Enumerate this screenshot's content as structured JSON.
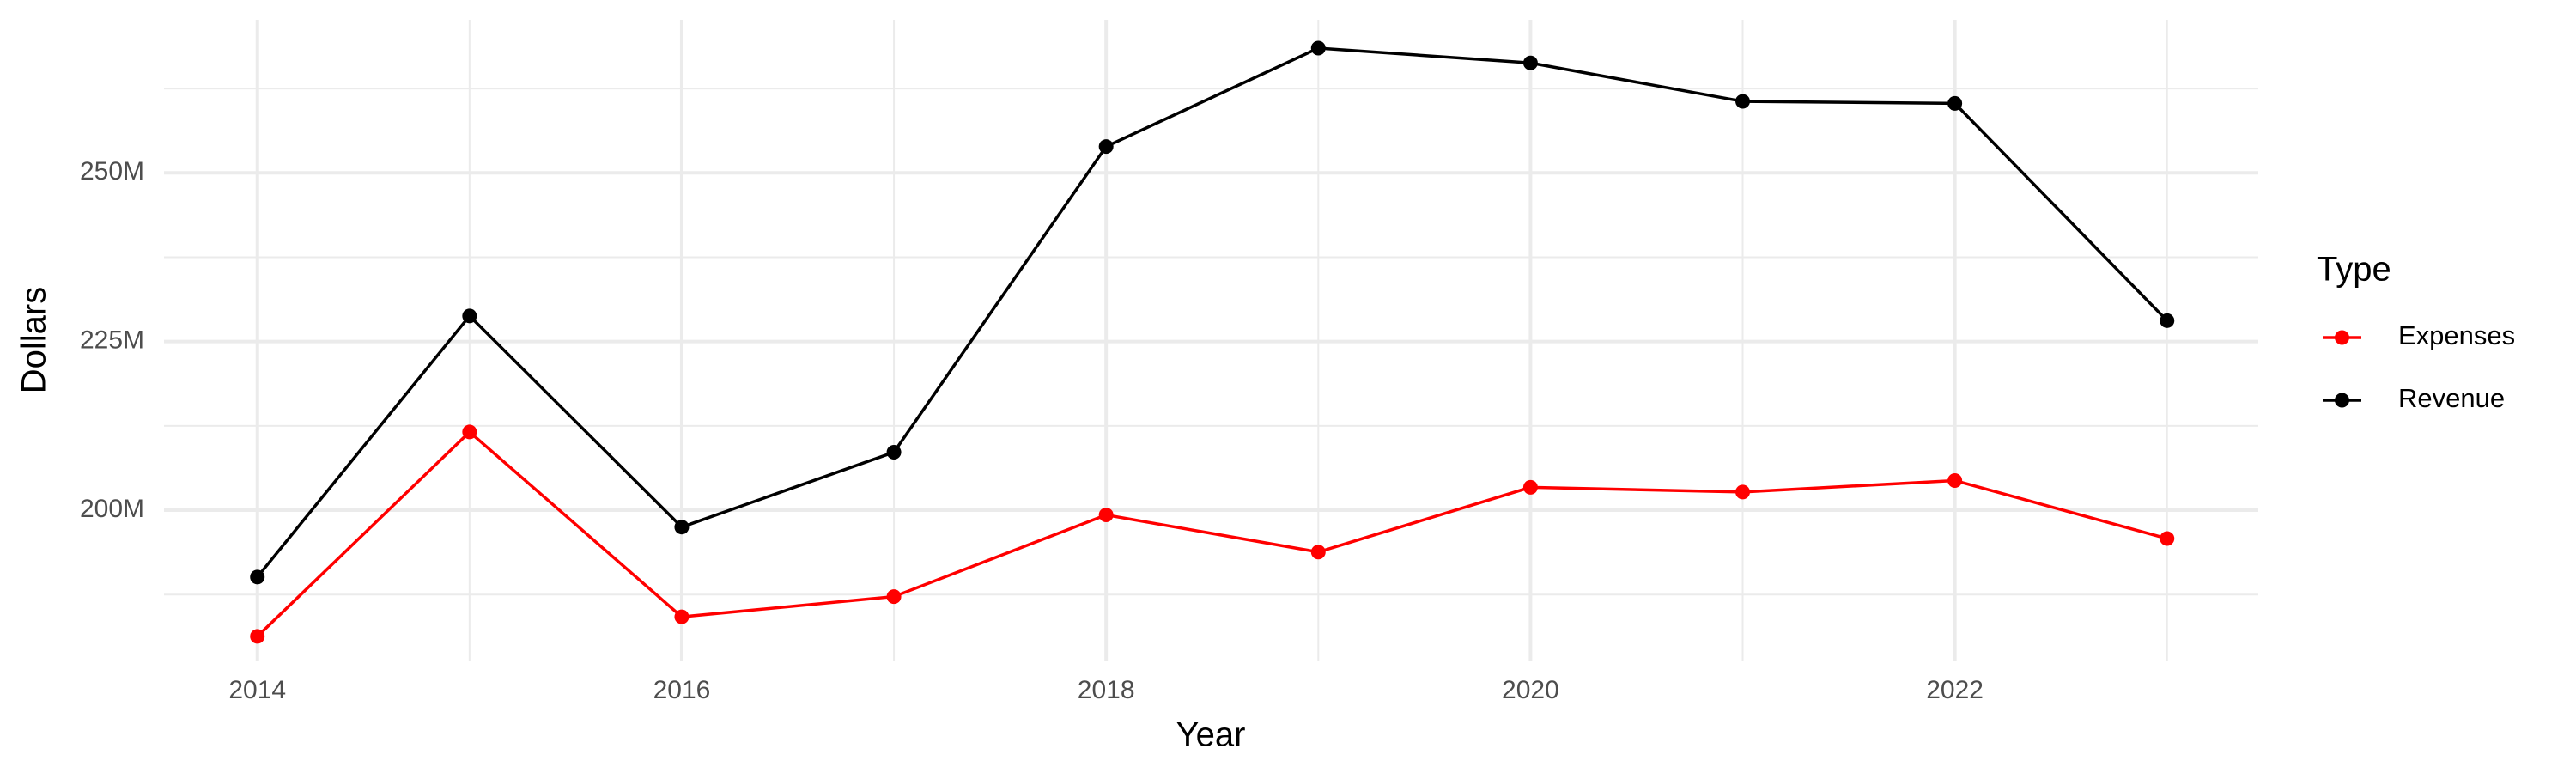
{
  "chart_data": {
    "type": "line",
    "x_label": "Year",
    "y_label": "Dollars",
    "legend_title": "Type",
    "x": [
      2014,
      2015,
      2016,
      2017,
      2018,
      2019,
      2020,
      2021,
      2022,
      2023
    ],
    "series": [
      {
        "name": "Expenses",
        "color": "#ff0000",
        "values": [
          181300000,
          211600000,
          184200000,
          187200000,
          199300000,
          193800000,
          203400000,
          202700000,
          204400000,
          195800000
        ]
      },
      {
        "name": "Revenue",
        "color": "#000000",
        "values": [
          190100000,
          228800000,
          197500000,
          208600000,
          253900000,
          268500000,
          266300000,
          260600000,
          260300000,
          228100000
        ]
      }
    ],
    "xlim": [
      2013.56,
      2023.43
    ],
    "xticks": [
      2014,
      2016,
      2018,
      2020,
      2022
    ],
    "ylim": [
      177600000,
      272700000
    ],
    "yticks": [
      {
        "value": 200000000,
        "label": "200M"
      },
      {
        "value": 225000000,
        "label": "225M"
      },
      {
        "value": 250000000,
        "label": "250M"
      }
    ],
    "grid": true,
    "legend_position": "right"
  }
}
